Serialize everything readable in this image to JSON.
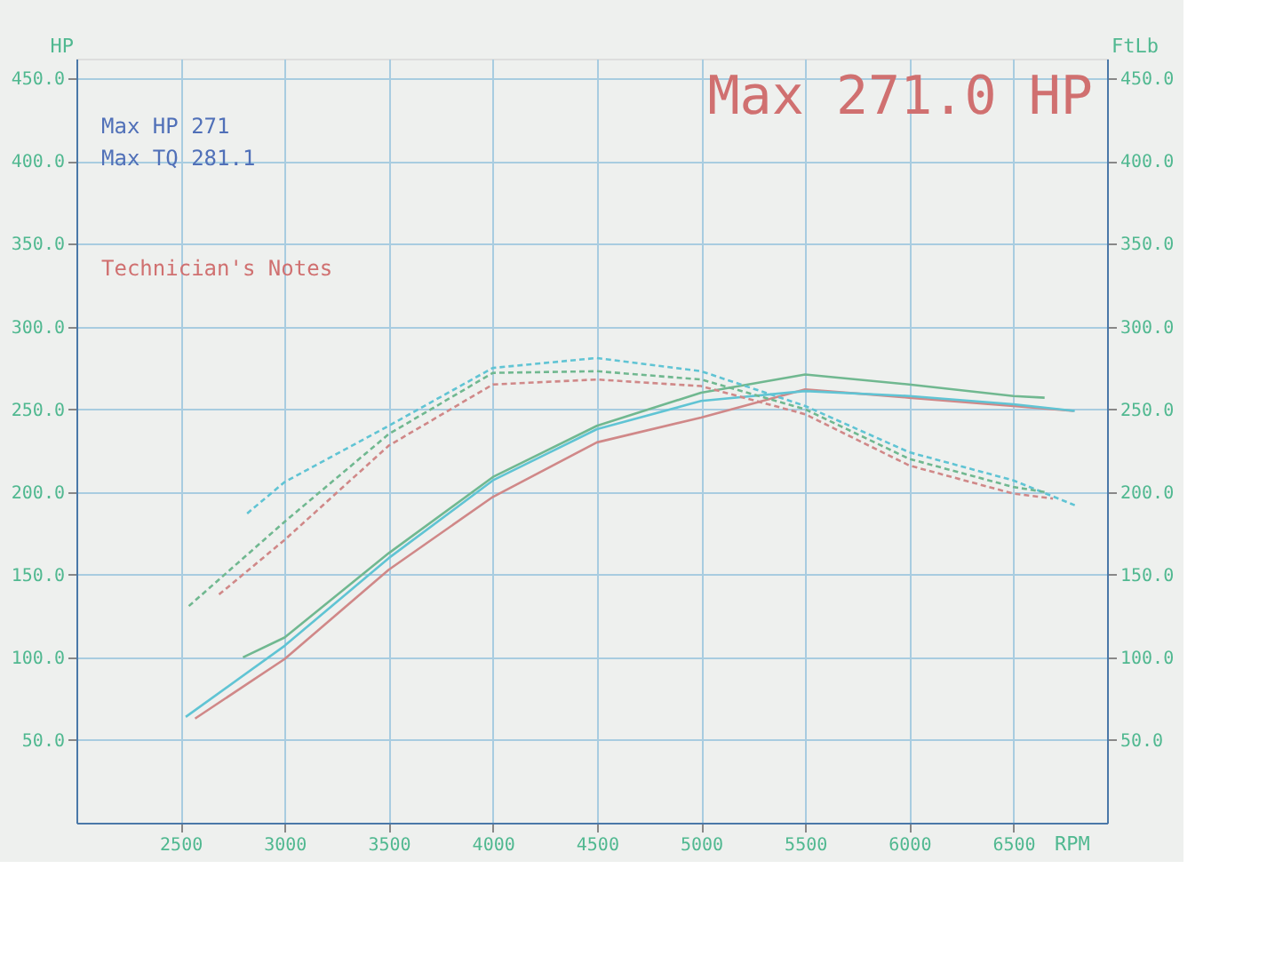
{
  "chart_data": {
    "type": "line",
    "xlabel": "RPM",
    "ylabel": "HP",
    "y2label": "FtLb",
    "xlim": [
      2000,
      6950
    ],
    "xticks": [
      2500,
      3000,
      3500,
      4000,
      4500,
      5000,
      5500,
      6000,
      6500
    ],
    "ylim": [
      0,
      462
    ],
    "yticks": [
      {
        "value": 50,
        "label": "50.0"
      },
      {
        "value": 100,
        "label": "100.0"
      },
      {
        "value": 150,
        "label": "150.0"
      },
      {
        "value": 200,
        "label": "200.0"
      },
      {
        "value": 250,
        "label": "250.0"
      },
      {
        "value": 300,
        "label": "300.0"
      },
      {
        "value": 350,
        "label": "350.0"
      },
      {
        "value": 400,
        "label": "400.0"
      },
      {
        "value": 450,
        "label": "450.0"
      }
    ],
    "y2lim": [
      0,
      462
    ],
    "y2ticks": [
      {
        "value": 50,
        "label": "50.0"
      },
      {
        "value": 100,
        "label": "100.0"
      },
      {
        "value": 150,
        "label": "150.0"
      },
      {
        "value": 200,
        "label": "200.0"
      },
      {
        "value": 250,
        "label": "250.0"
      },
      {
        "value": 300,
        "label": "300.0"
      },
      {
        "value": 350,
        "label": "350.0"
      },
      {
        "value": 400,
        "label": "400.0"
      },
      {
        "value": 450,
        "label": "450.0"
      }
    ],
    "grid": true,
    "legend": false,
    "annotations": [
      "Max 271.0 HP",
      "Max HP 271",
      "Max TQ 281.1",
      "Technician's Notes"
    ],
    "series": [
      {
        "color": "#d08888",
        "line_style": "solid",
        "x": [
          2570,
          3000,
          3500,
          4000,
          4500,
          5000,
          5500,
          6000,
          6500,
          6790
        ],
        "values": [
          63,
          99,
          153,
          197,
          230,
          245,
          262,
          257,
          252,
          249
        ]
      },
      {
        "color": "#60c4d4",
        "line_style": "solid",
        "x": [
          2525,
          3000,
          3500,
          4000,
          4500,
          5000,
          5500,
          6000,
          6500,
          6795
        ],
        "values": [
          64,
          107,
          160,
          207,
          238,
          255,
          261,
          258,
          253,
          249
        ]
      },
      {
        "color": "#70b890",
        "line_style": "solid",
        "x": [
          2800,
          3000,
          3500,
          4000,
          4500,
          5000,
          5500,
          6000,
          6500,
          6650
        ],
        "values": [
          100,
          112,
          163,
          209,
          240,
          260,
          271,
          265,
          258,
          257
        ]
      },
      {
        "color": "#d08888",
        "line_style": "dashed",
        "axis": "y2",
        "x": [
          2685,
          3000,
          3500,
          4000,
          4500,
          5000,
          5500,
          6000,
          6500,
          6690
        ],
        "values": [
          138,
          171,
          228,
          265,
          268,
          264,
          247,
          216,
          199,
          196
        ]
      },
      {
        "color": "#60c4d4",
        "line_style": "dashed",
        "axis": "y2",
        "x": [
          2820,
          3000,
          3500,
          4000,
          4500,
          5000,
          5500,
          6000,
          6500,
          6795
        ],
        "values": [
          187,
          206,
          240,
          275,
          281,
          273,
          252,
          224,
          207,
          192
        ]
      },
      {
        "color": "#70b890",
        "line_style": "dashed",
        "axis": "y2",
        "x": [
          2540,
          3000,
          3500,
          4000,
          4500,
          5000,
          5500,
          6000,
          6500,
          6650
        ],
        "values": [
          131,
          182,
          235,
          272,
          273,
          268,
          250,
          220,
          203,
          200
        ]
      }
    ]
  }
}
